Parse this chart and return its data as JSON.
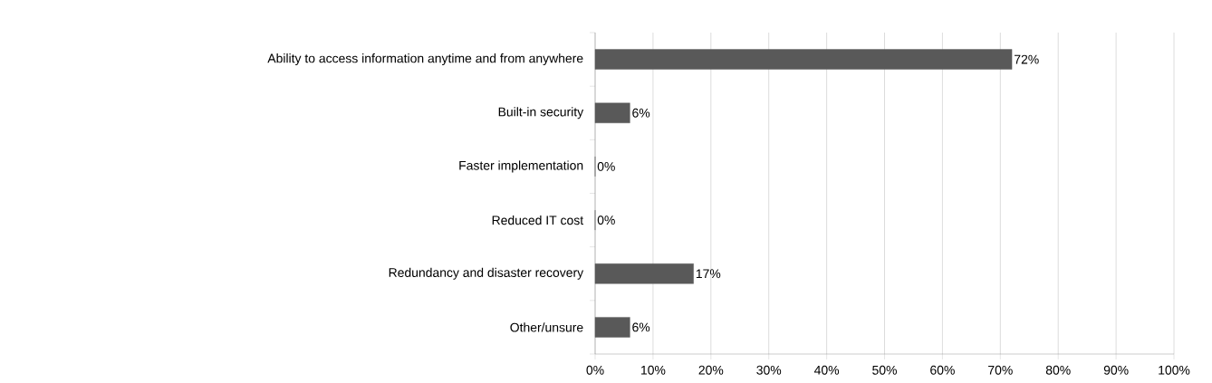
{
  "chart_data": {
    "type": "bar",
    "orientation": "horizontal",
    "categories": [
      "Ability to access information anytime and from anywhere",
      "Built-in security",
      "Faster implementation",
      "Reduced IT cost",
      "Redundancy and disaster recovery",
      "Other/unsure"
    ],
    "values": [
      72,
      6,
      0,
      0,
      17,
      6
    ],
    "value_labels": [
      "72%",
      "6%",
      "0%",
      "0%",
      "17%",
      "6%"
    ],
    "color": "#595959",
    "xlim": [
      0,
      100
    ],
    "xticks": [
      {
        "value": 0,
        "label": "0%"
      },
      {
        "value": 10,
        "label": "10%"
      },
      {
        "value": 20,
        "label": "20%"
      },
      {
        "value": 30,
        "label": "30%"
      },
      {
        "value": 40,
        "label": "40%"
      },
      {
        "value": 50,
        "label": "50%"
      },
      {
        "value": 60,
        "label": "60%"
      },
      {
        "value": 70,
        "label": "70%"
      },
      {
        "value": 80,
        "label": "80%"
      },
      {
        "value": 90,
        "label": "90%"
      },
      {
        "value": 100,
        "label": "100%"
      }
    ],
    "grid": "x"
  }
}
